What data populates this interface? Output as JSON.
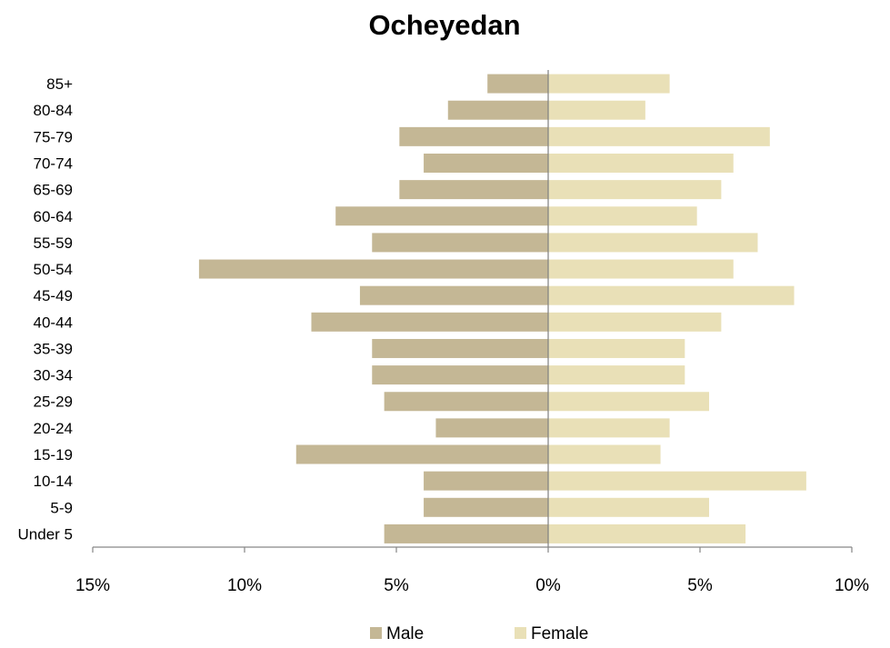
{
  "chart_data": {
    "type": "bar",
    "orientation": "horizontal",
    "title": "Ocheyedan",
    "xlabel": "",
    "ylabel": "",
    "categories": [
      "Under 5",
      "5-9",
      "10-14",
      "15-19",
      "20-24",
      "25-29",
      "30-34",
      "35-39",
      "40-44",
      "45-49",
      "50-54",
      "55-59",
      "60-64",
      "65-69",
      "70-74",
      "75-79",
      "80-84",
      "85+"
    ],
    "series": [
      {
        "name": "Male",
        "color": "#C4B795",
        "values": [
          -5.4,
          -4.1,
          -4.1,
          -8.3,
          -3.7,
          -5.4,
          -5.8,
          -5.8,
          -7.8,
          -6.2,
          -11.5,
          -5.8,
          -7.0,
          -4.9,
          -4.1,
          -4.9,
          -3.3,
          -2.0
        ]
      },
      {
        "name": "Female",
        "color": "#E9E0B7",
        "values": [
          6.5,
          5.3,
          8.5,
          3.7,
          4.0,
          5.3,
          4.5,
          4.5,
          5.7,
          8.1,
          6.1,
          6.9,
          4.9,
          5.7,
          6.1,
          7.3,
          3.2,
          4.0
        ]
      }
    ],
    "xlim": [
      -15,
      10
    ],
    "xticks": [
      -15,
      -10,
      -5,
      0,
      5,
      10
    ],
    "xtick_labels": [
      "15%",
      "10%",
      "5%",
      "0%",
      "5%",
      "10%"
    ],
    "grid": false,
    "legend_position": "bottom"
  }
}
